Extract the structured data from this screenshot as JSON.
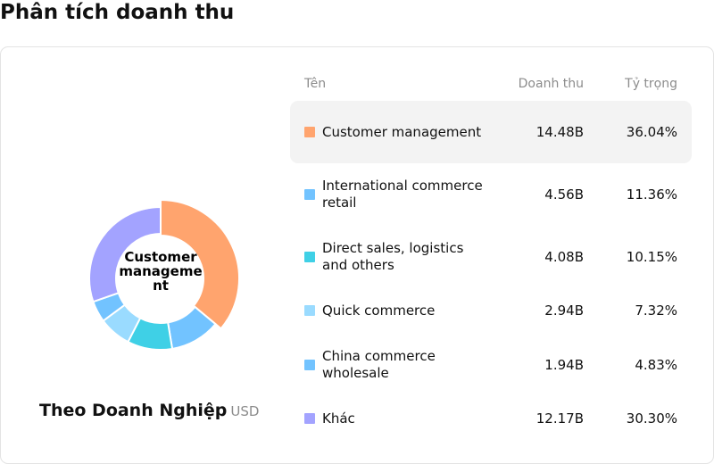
{
  "page": {
    "title": "Phân tích doanh thu"
  },
  "panel": {
    "center_label": "Customer management",
    "caption": "Theo Doanh Nghiệp",
    "unit": "USD"
  },
  "table": {
    "headers": {
      "name": "Tên",
      "revenue": "Doanh thu",
      "share": "Tỷ trọng"
    },
    "rows": [
      {
        "name": "Customer management",
        "value": "14.48B",
        "share": "36.04%",
        "color": "#ffa46e"
      },
      {
        "name": "International commerce retail",
        "value": "4.56B",
        "share": "11.36%",
        "color": "#72c3ff"
      },
      {
        "name": "Direct sales, logistics and others",
        "value": "4.08B",
        "share": "10.15%",
        "color": "#3fd0e6"
      },
      {
        "name": "Quick commerce",
        "value": "2.94B",
        "share": "7.32%",
        "color": "#9adbff"
      },
      {
        "name": "China commerce wholesale",
        "value": "1.94B",
        "share": "4.83%",
        "color": "#72c3ff"
      },
      {
        "name": "Khác",
        "value": "12.17B",
        "share": "30.30%",
        "color": "#a3a3ff"
      }
    ]
  },
  "chart_data": {
    "type": "pie",
    "donut": true,
    "categories": [
      "Customer management",
      "International commerce retail",
      "Direct sales, logistics and others",
      "Quick commerce",
      "China commerce wholesale",
      "Khác"
    ],
    "values": [
      14.48,
      4.56,
      4.08,
      2.94,
      1.94,
      12.17
    ],
    "percentages": [
      36.04,
      11.36,
      10.15,
      7.32,
      4.83,
      30.3
    ],
    "colors": [
      "#ffa46e",
      "#72c3ff",
      "#3fd0e6",
      "#9adbff",
      "#72c3ff",
      "#a3a3ff"
    ],
    "highlighted": "Customer management"
  }
}
